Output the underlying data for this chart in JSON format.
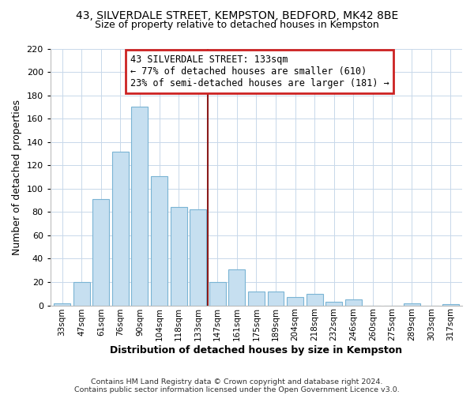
{
  "title1": "43, SILVERDALE STREET, KEMPSTON, BEDFORD, MK42 8BE",
  "title2": "Size of property relative to detached houses in Kempston",
  "xlabel": "Distribution of detached houses by size in Kempston",
  "ylabel": "Number of detached properties",
  "footer1": "Contains HM Land Registry data © Crown copyright and database right 2024.",
  "footer2": "Contains public sector information licensed under the Open Government Licence v3.0.",
  "bar_labels": [
    "33sqm",
    "47sqm",
    "61sqm",
    "76sqm",
    "90sqm",
    "104sqm",
    "118sqm",
    "133sqm",
    "147sqm",
    "161sqm",
    "175sqm",
    "189sqm",
    "204sqm",
    "218sqm",
    "232sqm",
    "246sqm",
    "260sqm",
    "275sqm",
    "289sqm",
    "303sqm",
    "317sqm"
  ],
  "bar_values": [
    2,
    20,
    91,
    132,
    170,
    111,
    84,
    82,
    20,
    31,
    12,
    12,
    7,
    10,
    3,
    5,
    0,
    0,
    2,
    0,
    1
  ],
  "bar_color": "#c6dff0",
  "bar_edge_color": "#7ab4d4",
  "highlight_line_index": 7,
  "highlight_line_color": "#8b1a1a",
  "annotation_title": "43 SILVERDALE STREET: 133sqm",
  "annotation_line1": "← 77% of detached houses are smaller (610)",
  "annotation_line2": "23% of semi-detached houses are larger (181) →",
  "annotation_box_edge": "#cc2222",
  "ylim": [
    0,
    220
  ],
  "yticks": [
    0,
    20,
    40,
    60,
    80,
    100,
    120,
    140,
    160,
    180,
    200,
    220
  ],
  "bg_color": "#ffffff",
  "grid_color": "#c8d8ea"
}
